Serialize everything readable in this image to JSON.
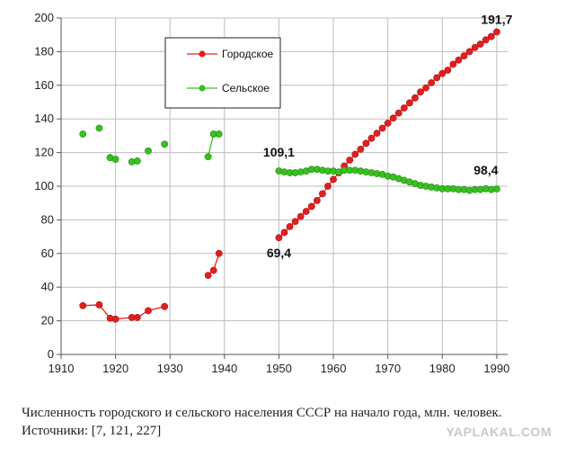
{
  "chart_data": {
    "type": "line",
    "xlim": [
      1910,
      1992
    ],
    "ylim": [
      0,
      200
    ],
    "x_ticks": [
      "1910",
      "1920",
      "1930",
      "1940",
      "1950",
      "1960",
      "1970",
      "1980",
      "1990"
    ],
    "y_ticks": [
      "0",
      "20",
      "40",
      "60",
      "80",
      "100",
      "120",
      "140",
      "160",
      "180",
      "200"
    ],
    "grid": true,
    "legend_placement": "top-center",
    "series": [
      {
        "name": "Городское",
        "color": "#e02020",
        "segments": [
          [
            [
              1914,
              29
            ],
            [
              1917,
              29.5
            ],
            [
              1919,
              21.5
            ],
            [
              1920,
              21
            ],
            [
              1923,
              22
            ],
            [
              1924,
              22
            ],
            [
              1926,
              26
            ],
            [
              1929,
              28.5
            ]
          ],
          [
            [
              1937,
              47
            ],
            [
              1938,
              50
            ],
            [
              1939,
              60
            ]
          ],
          [
            [
              1950,
              69.4
            ],
            [
              1951,
              72.5
            ],
            [
              1952,
              76
            ],
            [
              1953,
              79
            ],
            [
              1954,
              82
            ],
            [
              1955,
              85
            ],
            [
              1956,
              88
            ],
            [
              1957,
              91.5
            ],
            [
              1958,
              95.5
            ],
            [
              1959,
              100
            ],
            [
              1960,
              104
            ],
            [
              1961,
              108
            ],
            [
              1962,
              112
            ],
            [
              1963,
              115.5
            ],
            [
              1964,
              119
            ],
            [
              1965,
              122
            ],
            [
              1966,
              125.5
            ],
            [
              1967,
              128.5
            ],
            [
              1968,
              131.5
            ],
            [
              1969,
              134.5
            ],
            [
              1970,
              137.5
            ],
            [
              1971,
              140.5
            ],
            [
              1972,
              143.5
            ],
            [
              1973,
              146.5
            ],
            [
              1974,
              149.5
            ],
            [
              1975,
              152.5
            ],
            [
              1976,
              156
            ],
            [
              1977,
              158.5
            ],
            [
              1978,
              161.5
            ],
            [
              1979,
              164.5
            ],
            [
              1980,
              167
            ],
            [
              1981,
              169
            ],
            [
              1982,
              172.5
            ],
            [
              1983,
              175
            ],
            [
              1984,
              177.5
            ],
            [
              1985,
              180
            ],
            [
              1986,
              182.5
            ],
            [
              1987,
              184.5
            ],
            [
              1988,
              187
            ],
            [
              1989,
              189
            ],
            [
              1990,
              191.7
            ]
          ]
        ]
      },
      {
        "name": "Сельское",
        "color": "#38c020",
        "segments": [
          [
            [
              1914,
              131
            ]
          ],
          [
            [
              1917,
              134.5
            ]
          ],
          [
            [
              1919,
              117
            ],
            [
              1920,
              116
            ]
          ],
          [
            [
              1923,
              114.5
            ],
            [
              1924,
              115
            ]
          ],
          [
            [
              1926,
              121
            ]
          ],
          [
            [
              1929,
              125
            ]
          ],
          [
            [
              1937,
              117.5
            ],
            [
              1938,
              131
            ],
            [
              1939,
              131
            ]
          ],
          [
            [
              1950,
              109.1
            ],
            [
              1951,
              108.5
            ],
            [
              1952,
              108
            ],
            [
              1953,
              108
            ],
            [
              1954,
              108.5
            ],
            [
              1955,
              109
            ],
            [
              1956,
              110
            ],
            [
              1957,
              110
            ],
            [
              1958,
              109.5
            ],
            [
              1959,
              109
            ],
            [
              1960,
              109
            ],
            [
              1961,
              108.5
            ],
            [
              1962,
              109.5
            ],
            [
              1963,
              109.5
            ],
            [
              1964,
              109.5
            ],
            [
              1965,
              109
            ],
            [
              1966,
              108.5
            ],
            [
              1967,
              108
            ],
            [
              1968,
              107.5
            ],
            [
              1969,
              107
            ],
            [
              1970,
              106
            ],
            [
              1971,
              105.5
            ],
            [
              1972,
              104.5
            ],
            [
              1973,
              103.5
            ],
            [
              1974,
              102.5
            ],
            [
              1975,
              101.5
            ],
            [
              1976,
              100.5
            ],
            [
              1977,
              100
            ],
            [
              1978,
              99.5
            ],
            [
              1979,
              99
            ],
            [
              1980,
              98.5
            ],
            [
              1981,
              98.5
            ],
            [
              1982,
              98.5
            ],
            [
              1983,
              98
            ],
            [
              1984,
              98
            ],
            [
              1985,
              97.5
            ],
            [
              1986,
              98
            ],
            [
              1987,
              98
            ],
            [
              1988,
              98.5
            ],
            [
              1989,
              98
            ],
            [
              1990,
              98.4
            ]
          ]
        ]
      }
    ],
    "annotations": [
      {
        "text": "191,7",
        "x": 1990,
        "y": 191.7
      },
      {
        "text": "109,1",
        "x": 1950,
        "y": 109.1
      },
      {
        "text": "98,4",
        "x": 1990,
        "y": 98.4
      },
      {
        "text": "69,4",
        "x": 1950,
        "y": 69.4
      }
    ]
  },
  "caption": {
    "line1": "Численность городского и сельского населения СССР на начало года, млн. человек.",
    "line2": "Источники: [7, 121, 227]"
  },
  "watermark": "YAPLAKAL.COM"
}
